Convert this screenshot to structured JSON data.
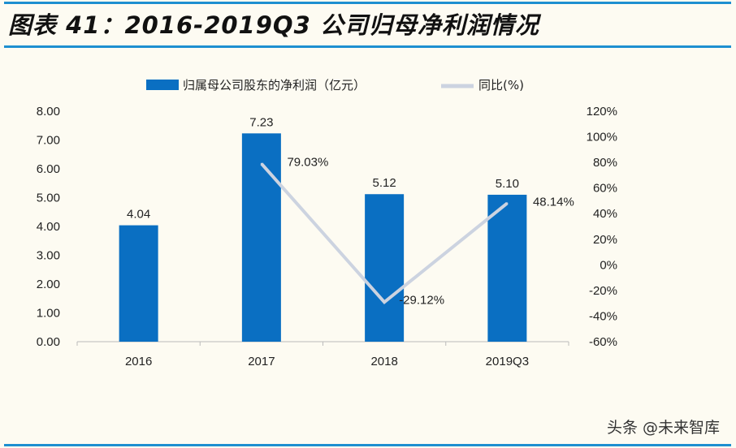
{
  "title": "图表 41：2016-2019Q3 公司归母净利润情况",
  "watermark": "头条 @未来智库",
  "chart_data": {
    "type": "bar+line",
    "categories": [
      "2016",
      "2017",
      "2018",
      "2019Q3"
    ],
    "series": [
      {
        "name": "归属母公司股东的净利润（亿元）",
        "type": "bar",
        "axis": "left",
        "color": "#0a6fc2",
        "values": [
          4.04,
          7.23,
          5.12,
          5.1
        ],
        "labels": [
          "4.04",
          "7.23",
          "5.12",
          "5.10"
        ]
      },
      {
        "name": "同比(%)",
        "type": "line",
        "axis": "right",
        "color": "#ccd3e0",
        "values": [
          null,
          79.03,
          -29.12,
          48.14
        ],
        "labels": [
          "",
          "79.03%",
          "-29.12%",
          "48.14%"
        ]
      }
    ],
    "left_axis": {
      "ylim": [
        0,
        8
      ],
      "ticks": [
        "0.00",
        "1.00",
        "2.00",
        "3.00",
        "4.00",
        "5.00",
        "6.00",
        "7.00",
        "8.00"
      ]
    },
    "right_axis": {
      "ylim": [
        -60,
        120
      ],
      "ticks": [
        "-60%",
        "-40%",
        "-20%",
        "0%",
        "20%",
        "40%",
        "60%",
        "80%",
        "100%",
        "120%"
      ]
    },
    "legend": "top",
    "grid": false
  }
}
